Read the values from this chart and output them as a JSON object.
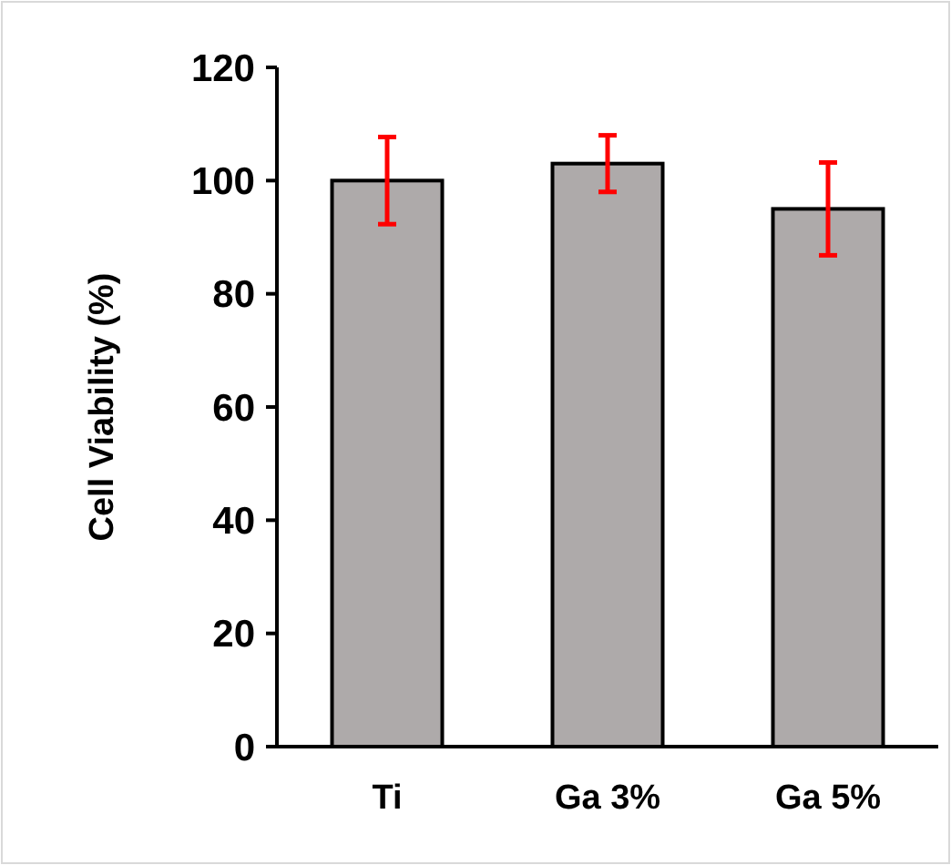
{
  "chart_data": {
    "type": "bar",
    "ylabel": "Cell Viability (%)",
    "categories": [
      "Ti",
      "Ga 3%",
      "Ga 5%"
    ],
    "values": [
      100,
      103,
      95
    ],
    "color": "#aeaaaa",
    "errors": [
      7.7,
      5,
      8.2
    ],
    "ylim": [
      0,
      120
    ],
    "yticks": [
      0,
      20,
      40,
      60,
      80,
      100,
      120
    ]
  }
}
